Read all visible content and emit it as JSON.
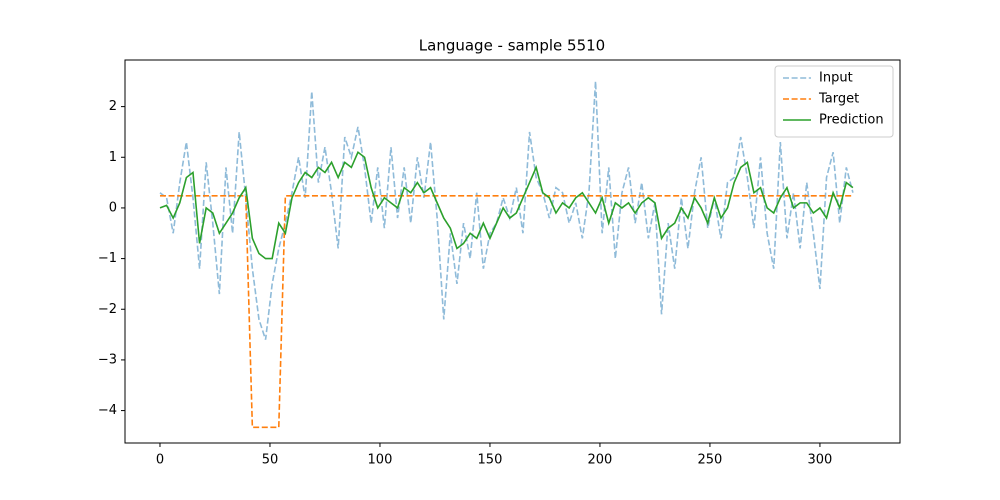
{
  "chart_data": {
    "type": "line",
    "title": "Language - sample 5510",
    "x": [
      0,
      3,
      6,
      9,
      12,
      15,
      18,
      21,
      24,
      27,
      30,
      33,
      36,
      39,
      42,
      45,
      48,
      51,
      54,
      57,
      60,
      63,
      66,
      69,
      72,
      75,
      78,
      81,
      84,
      87,
      90,
      93,
      96,
      99,
      102,
      105,
      108,
      111,
      114,
      117,
      120,
      123,
      126,
      129,
      132,
      135,
      138,
      141,
      144,
      147,
      150,
      153,
      156,
      159,
      162,
      165,
      168,
      171,
      174,
      177,
      180,
      183,
      186,
      189,
      192,
      195,
      198,
      201,
      204,
      207,
      210,
      213,
      216,
      219,
      222,
      225,
      228,
      231,
      234,
      237,
      240,
      243,
      246,
      249,
      252,
      255,
      258,
      261,
      264,
      267,
      270,
      273,
      276,
      279,
      282,
      285,
      288,
      291,
      294,
      297,
      300,
      303,
      306,
      309,
      312,
      315
    ],
    "series": [
      {
        "name": "Input",
        "color": "#1f77b4",
        "opacity": 0.5,
        "linestyle": "dashed",
        "values": [
          0.3,
          0.2,
          -0.5,
          0.5,
          1.3,
          0.2,
          -1.2,
          0.9,
          -0.3,
          -1.7,
          0.8,
          -0.5,
          1.5,
          0.2,
          -1.2,
          -2.2,
          -2.6,
          -1.5,
          -0.8,
          -0.3,
          0.3,
          1.0,
          0.2,
          2.3,
          0.5,
          1.2,
          0.3,
          -0.8,
          1.4,
          1.0,
          1.6,
          0.8,
          -0.3,
          0.8,
          -0.4,
          1.2,
          -0.2,
          0.8,
          -0.3,
          1.0,
          0.2,
          1.3,
          -0.2,
          -2.2,
          -0.5,
          -1.5,
          -0.3,
          -1.0,
          0.3,
          -1.2,
          -0.5,
          -0.3,
          0.2,
          -0.2,
          0.4,
          -0.5,
          1.5,
          0.6,
          0.3,
          -0.2,
          0.4,
          0.3,
          -0.3,
          0.1,
          -0.6,
          0.3,
          2.5,
          -0.5,
          0.8,
          -1.0,
          0.3,
          0.8,
          -0.3,
          0.5,
          -0.6,
          0.1,
          -2.1,
          -0.3,
          -1.2,
          0.2,
          -0.8,
          0.3,
          1.0,
          -0.4,
          0.2,
          -0.6,
          0.5,
          0.6,
          1.4,
          0.6,
          -0.4,
          1.0,
          -0.5,
          -1.2,
          1.3,
          -0.6,
          0.3,
          -0.8,
          0.5,
          -0.5,
          -1.6,
          0.6,
          1.1,
          -0.3,
          0.8,
          0.3
        ]
      },
      {
        "name": "Target",
        "color": "#ff7f0e",
        "opacity": 1,
        "linestyle": "dashed",
        "values": [
          0.24,
          0.24,
          0.24,
          0.24,
          0.24,
          0.24,
          0.24,
          0.24,
          0.24,
          0.24,
          0.24,
          0.24,
          0.24,
          0.24,
          -4.33,
          -4.33,
          -4.33,
          -4.33,
          -4.33,
          0.24,
          0.24,
          0.24,
          0.24,
          0.24,
          0.24,
          0.24,
          0.24,
          0.24,
          0.24,
          0.24,
          0.24,
          0.24,
          0.24,
          0.24,
          0.24,
          0.24,
          0.24,
          0.24,
          0.24,
          0.24,
          0.24,
          0.24,
          0.24,
          0.24,
          0.24,
          0.24,
          0.24,
          0.24,
          0.24,
          0.24,
          0.24,
          0.24,
          0.24,
          0.24,
          0.24,
          0.24,
          0.24,
          0.24,
          0.24,
          0.24,
          0.24,
          0.24,
          0.24,
          0.24,
          0.24,
          0.24,
          0.24,
          0.24,
          0.24,
          0.24,
          0.24,
          0.24,
          0.24,
          0.24,
          0.24,
          0.24,
          0.24,
          0.24,
          0.24,
          0.24,
          0.24,
          0.24,
          0.24,
          0.24,
          0.24,
          0.24,
          0.24,
          0.24,
          0.24,
          0.24,
          0.24,
          0.24,
          0.24,
          0.24,
          0.24,
          0.24,
          0.24,
          0.24,
          0.24,
          0.24,
          0.24,
          0.24,
          0.24,
          0.24,
          0.24,
          0.24
        ]
      },
      {
        "name": "Prediction",
        "color": "#2ca02c",
        "opacity": 1,
        "linestyle": "solid",
        "values": [
          0.0,
          0.05,
          -0.2,
          0.1,
          0.6,
          0.7,
          -0.7,
          0.0,
          -0.1,
          -0.5,
          -0.3,
          -0.1,
          0.2,
          0.4,
          -0.6,
          -0.9,
          -1.0,
          -1.0,
          -0.3,
          -0.5,
          0.2,
          0.5,
          0.7,
          0.6,
          0.8,
          0.7,
          0.9,
          0.6,
          0.9,
          0.8,
          1.1,
          1.0,
          0.4,
          0.0,
          0.2,
          0.1,
          0.0,
          0.4,
          0.3,
          0.5,
          0.3,
          0.4,
          0.1,
          -0.2,
          -0.4,
          -0.8,
          -0.7,
          -0.5,
          -0.6,
          -0.3,
          -0.6,
          -0.3,
          0.0,
          -0.2,
          -0.1,
          0.2,
          0.5,
          0.8,
          0.3,
          0.2,
          -0.1,
          0.1,
          0.0,
          0.2,
          0.3,
          0.1,
          -0.1,
          0.2,
          -0.3,
          0.1,
          0.0,
          0.1,
          -0.1,
          0.1,
          0.2,
          0.1,
          -0.6,
          -0.4,
          -0.3,
          0.0,
          -0.2,
          0.2,
          0.0,
          -0.3,
          0.2,
          -0.2,
          0.0,
          0.5,
          0.8,
          0.9,
          0.3,
          0.4,
          0.0,
          -0.1,
          0.2,
          0.4,
          0.0,
          0.1,
          0.1,
          -0.1,
          0.0,
          -0.2,
          0.3,
          0.0,
          0.5,
          0.4
        ]
      }
    ],
    "xlim": [
      -15.9,
      336.4
    ],
    "ylim": [
      -4.64,
      2.92
    ],
    "xticks": [
      0,
      50,
      100,
      150,
      200,
      250,
      300
    ],
    "yticks": [
      {
        "value": -4,
        "label": "−4"
      },
      {
        "value": -3,
        "label": "−3"
      },
      {
        "value": -2,
        "label": "−2"
      },
      {
        "value": -1,
        "label": "−1"
      },
      0,
      1,
      2
    ],
    "legend": "upper right"
  }
}
